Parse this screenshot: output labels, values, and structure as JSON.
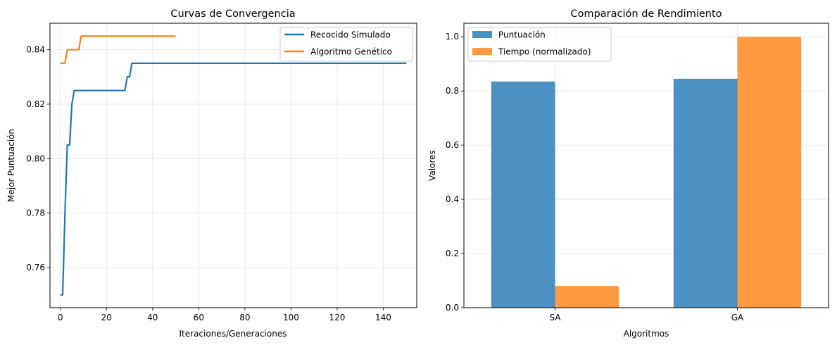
{
  "chart_data": [
    {
      "type": "line",
      "title": "Curvas de Convergencia",
      "xlabel": "Iteraciones/Generaciones",
      "ylabel": "Mejor Puntuación",
      "xlim": [
        -4.5,
        154.5
      ],
      "ylim": [
        0.7453,
        0.8497
      ],
      "xticks": [
        0,
        20,
        40,
        60,
        80,
        100,
        120,
        140
      ],
      "xtick_labels": [
        "0",
        "20",
        "40",
        "60",
        "80",
        "100",
        "120",
        "140"
      ],
      "yticks": [
        0.76,
        0.78,
        0.8,
        0.82,
        0.84
      ],
      "ytick_labels": [
        "0.76",
        "0.78",
        "0.80",
        "0.82",
        "0.84"
      ],
      "grid": true,
      "legend_position": "upper-right",
      "series": [
        {
          "name": "Recocido Simulado",
          "color": "#1f77b4",
          "points": [
            [
              0,
              0.75
            ],
            [
              1,
              0.75
            ],
            [
              2,
              0.78
            ],
            [
              3,
              0.805
            ],
            [
              4,
              0.805
            ],
            [
              5,
              0.82
            ],
            [
              6,
              0.825
            ],
            [
              28,
              0.825
            ],
            [
              29,
              0.83
            ],
            [
              30,
              0.83
            ],
            [
              31,
              0.835
            ],
            [
              150,
              0.835
            ]
          ]
        },
        {
          "name": "Algoritmo Genético",
          "color": "#ff7f0e",
          "points": [
            [
              0,
              0.835
            ],
            [
              2,
              0.835
            ],
            [
              3,
              0.84
            ],
            [
              8,
              0.84
            ],
            [
              9,
              0.845
            ],
            [
              50,
              0.845
            ]
          ]
        }
      ]
    },
    {
      "type": "bar",
      "title": "Comparación de Rendimiento",
      "xlabel": "Algoritmos",
      "ylabel": "Valores",
      "categories": [
        "SA",
        "GA"
      ],
      "ylim": [
        0,
        1.05
      ],
      "yticks": [
        0.0,
        0.2,
        0.4,
        0.6,
        0.8,
        1.0
      ],
      "ytick_labels": [
        "0.0",
        "0.2",
        "0.4",
        "0.6",
        "0.8",
        "1.0"
      ],
      "grid": true,
      "legend_position": "upper-left",
      "series": [
        {
          "name": "Puntuación",
          "color": "#4a90c2",
          "values": [
            0.835,
            0.845
          ]
        },
        {
          "name": "Tiempo (normalizado)",
          "color": "#ff9a40",
          "values": [
            0.08,
            1.0
          ]
        }
      ]
    }
  ]
}
